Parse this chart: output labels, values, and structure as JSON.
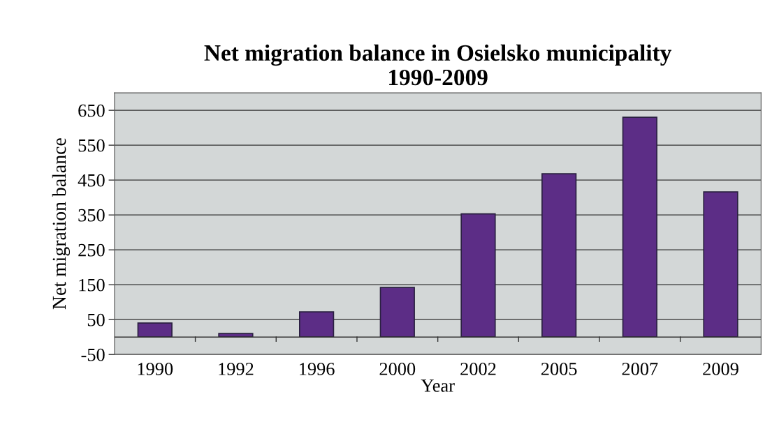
{
  "chart_data": {
    "type": "bar",
    "title": "Net migration balance in Osielsko municipality\n1990-2009",
    "xlabel": "Year",
    "ylabel": "Net migration balance",
    "categories": [
      "1990",
      "1992",
      "1996",
      "2000",
      "2002",
      "2005",
      "2007",
      "2009"
    ],
    "values": [
      40,
      10,
      72,
      142,
      353,
      468,
      630,
      416
    ],
    "color": "#5c2d86",
    "ylim": [
      -50,
      700
    ],
    "yticks": [
      -50,
      50,
      150,
      250,
      350,
      450,
      550,
      650
    ],
    "grid": "y"
  }
}
